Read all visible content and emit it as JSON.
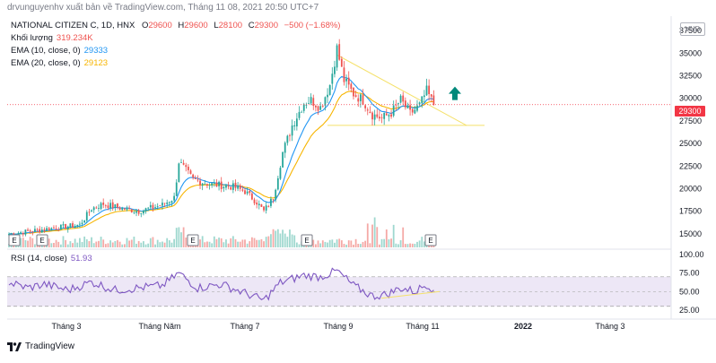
{
  "header": {
    "publisher": "drvunguyenhv xuất bản về TradingView.com, Tháng 11 08, 2021 20:50 UTC+7"
  },
  "legend": {
    "symbol": "NATIONAL CITIZEN C, 1D, HNX",
    "o_label": "O",
    "o_value": "29600",
    "h_label": "H",
    "h_value": "29600",
    "l_label": "L",
    "l_value": "28100",
    "c_label": "C",
    "c_value": "29300",
    "change": "−500 (−1.68%)",
    "volume_label": "Khối lượng",
    "volume_value": "319.234K",
    "ema10_label": "EMA (10, close, 0)",
    "ema10_value": "29333",
    "ema20_label": "EMA (20, close, 0)",
    "ema20_value": "29123",
    "rsi_label": "RSI (14, close)",
    "rsi_value": "51.93"
  },
  "currency": "VND",
  "last_price_tag": "29300",
  "footer": {
    "brand": "TradingView"
  },
  "colors": {
    "up": "#26a69a",
    "down": "#ef5350",
    "ema10": "#2196f3",
    "ema20": "#f7b500",
    "trend": "#f5e16b",
    "rsi_line": "#7e57c2",
    "rsi_band": "#ede7f6",
    "arrow": "#00897b",
    "price_line": "#f23645"
  },
  "chart_data": {
    "type": "candlestick",
    "price_axis": {
      "ticks": [
        "37500",
        "35000",
        "32500",
        "30000",
        "27500",
        "25000",
        "22500",
        "20000",
        "17500",
        "15000"
      ],
      "ylim": [
        13500,
        38500
      ]
    },
    "rsi_axis": {
      "ticks": [
        "100.00",
        "75.00",
        "50.00",
        "25.00"
      ],
      "ylim": [
        20,
        105
      ],
      "band": [
        30,
        70
      ]
    },
    "time_axis": {
      "labels": [
        "Tháng 3",
        "Tháng Năm",
        "Tháng 7",
        "Tháng 9",
        "Tháng 11",
        "2022",
        "Tháng 3"
      ]
    },
    "event_markers": [
      "E",
      "E",
      "E",
      "E",
      "E"
    ],
    "close_anchors": [
      [
        0,
        15000
      ],
      [
        15,
        15500
      ],
      [
        30,
        16000
      ],
      [
        35,
        17800
      ],
      [
        40,
        18300
      ],
      [
        48,
        17800
      ],
      [
        55,
        17500
      ],
      [
        65,
        18200
      ],
      [
        70,
        19000
      ],
      [
        72,
        23000
      ],
      [
        78,
        21000
      ],
      [
        85,
        20500
      ],
      [
        95,
        20200
      ],
      [
        100,
        19700
      ],
      [
        105,
        18500
      ],
      [
        108,
        17500
      ],
      [
        112,
        19000
      ],
      [
        116,
        24000
      ],
      [
        120,
        27000
      ],
      [
        125,
        29500
      ],
      [
        128,
        29800
      ],
      [
        132,
        29000
      ],
      [
        136,
        31500
      ],
      [
        139,
        35500
      ],
      [
        142,
        32000
      ],
      [
        146,
        30500
      ],
      [
        150,
        29800
      ],
      [
        154,
        28200
      ],
      [
        158,
        27800
      ],
      [
        162,
        28400
      ],
      [
        166,
        29800
      ],
      [
        170,
        28300
      ],
      [
        174,
        29200
      ],
      [
        177,
        30800
      ],
      [
        180,
        29300
      ]
    ],
    "rsi_anchors": [
      [
        0,
        62
      ],
      [
        8,
        55
      ],
      [
        15,
        60
      ],
      [
        25,
        52
      ],
      [
        35,
        63
      ],
      [
        45,
        52
      ],
      [
        55,
        55
      ],
      [
        65,
        58
      ],
      [
        72,
        75
      ],
      [
        80,
        55
      ],
      [
        90,
        60
      ],
      [
        100,
        48
      ],
      [
        108,
        38
      ],
      [
        115,
        62
      ],
      [
        125,
        72
      ],
      [
        132,
        70
      ],
      [
        139,
        78
      ],
      [
        146,
        58
      ],
      [
        154,
        44
      ],
      [
        160,
        46
      ],
      [
        166,
        55
      ],
      [
        172,
        50
      ],
      [
        177,
        60
      ],
      [
        180,
        52
      ]
    ]
  }
}
